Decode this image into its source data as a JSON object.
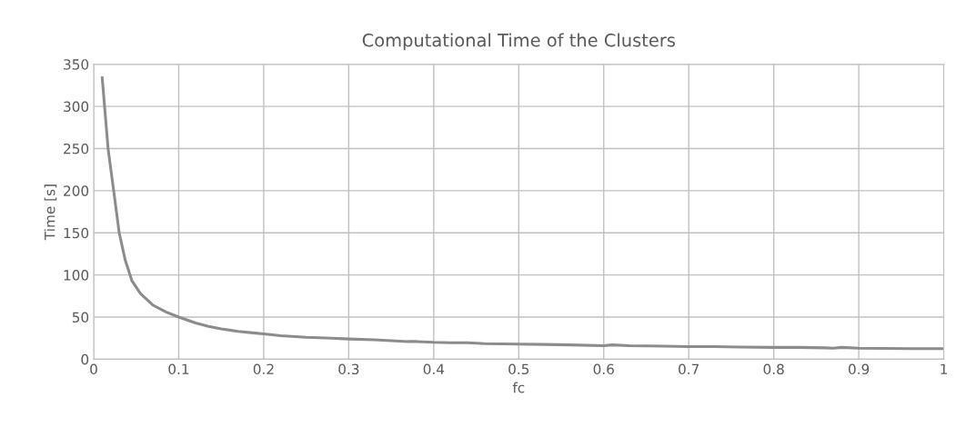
{
  "chart_data": {
    "type": "line",
    "title": "Computational Time of the Clusters",
    "xlabel": "fc",
    "ylabel": "Time [s]",
    "x": [
      0.01,
      0.017,
      0.0235,
      0.03,
      0.037,
      0.045,
      0.055,
      0.07,
      0.085,
      0.1,
      0.12,
      0.135,
      0.15,
      0.17,
      0.19,
      0.2,
      0.22,
      0.25,
      0.28,
      0.3,
      0.33,
      0.35,
      0.37,
      0.38,
      0.4,
      0.42,
      0.44,
      0.46,
      0.5,
      0.53,
      0.56,
      0.6,
      0.61,
      0.63,
      0.67,
      0.7,
      0.73,
      0.76,
      0.8,
      0.83,
      0.86,
      0.87,
      0.88,
      0.9,
      0.93,
      0.96,
      1.0
    ],
    "series": [
      {
        "color": "#8c8c8c",
        "values": [
          334,
          249,
          200,
          150,
          118,
          93,
          78,
          64,
          56,
          50,
          43,
          39,
          36,
          33,
          31,
          30,
          28,
          26,
          25,
          24,
          23,
          22,
          21,
          21,
          20,
          19.5,
          19.5,
          18.5,
          18,
          17.5,
          17,
          16,
          17,
          16,
          15.5,
          15,
          15,
          14.5,
          14,
          14,
          13.5,
          13,
          14,
          13,
          12.8,
          12.5,
          12.5
        ]
      }
    ],
    "xlim": [
      0,
      1
    ],
    "xticks": [
      0,
      0.1,
      0.2,
      0.3,
      0.4,
      0.5,
      0.6,
      0.7,
      0.8,
      0.9,
      1
    ],
    "ylim": [
      0,
      350
    ],
    "yticks": [
      0,
      50,
      100,
      150,
      200,
      250,
      300,
      350
    ],
    "grid": true,
    "legend": false,
    "marker": "none",
    "line_style": "solid"
  }
}
